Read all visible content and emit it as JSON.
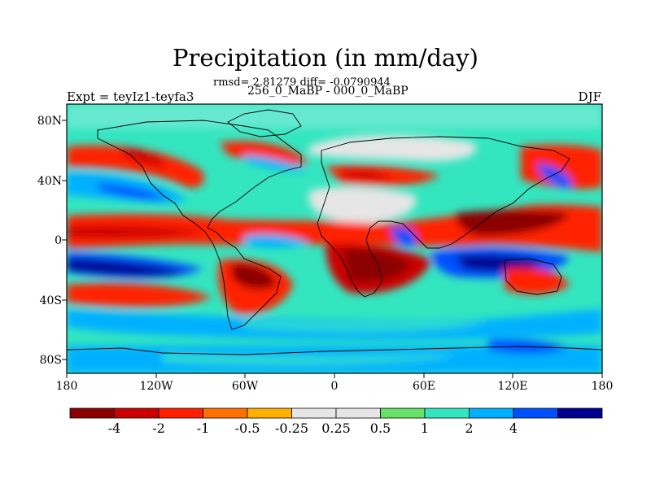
{
  "title": "Precipitation (in mm/day)",
  "stats_line": "rmsd= 2.81279 diff= -0.0790944",
  "experiment_label": "Expt = teyIz1-teyfa3",
  "period_label": "256_0_MaBP - 000_0_MaBP",
  "season_label": "DJF",
  "lat_labels": [
    "80N",
    "40N",
    "0",
    "40S",
    "80S"
  ],
  "lon_labels": [
    "180",
    "120W",
    "60W",
    "0",
    "60E",
    "120E",
    "180"
  ],
  "colorbar": {
    "colors": [
      "#8b0000",
      "#cc0000",
      "#ff2000",
      "#ff7000",
      "#ffb000",
      "#e6e6e6",
      "#e6e6e6",
      "#66e066",
      "#33e6c0",
      "#00b0ff",
      "#0050ff",
      "#000090"
    ],
    "tick_labels": [
      "-4",
      "-2",
      "-1",
      "-0.5",
      "-0.25",
      "0.25",
      "0.5",
      "1",
      "2",
      "4"
    ]
  }
}
